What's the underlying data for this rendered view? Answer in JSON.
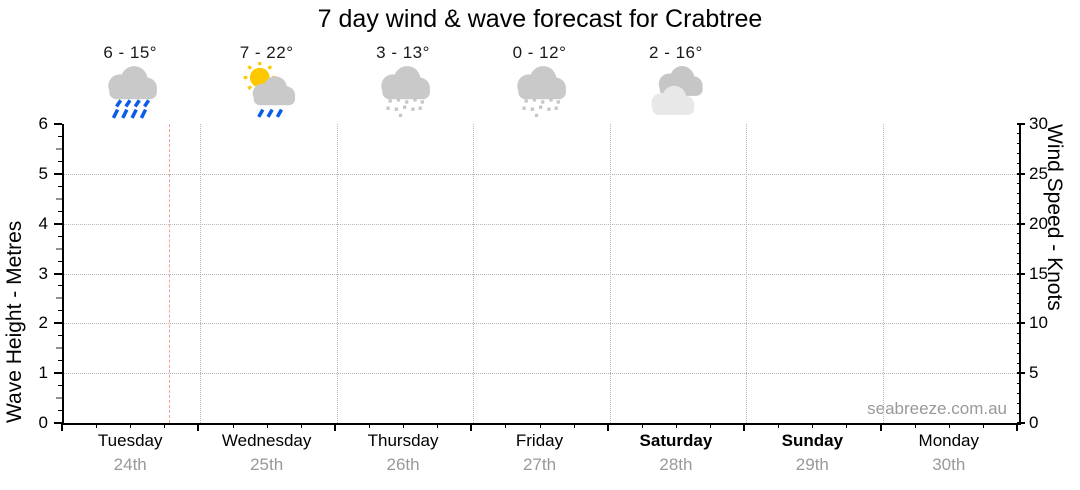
{
  "chart_data": {
    "type": "line",
    "title": "7 day wind & wave forecast for Crabtree",
    "watermark": "seabreeze.com.au",
    "left_axis": {
      "label": "Wave Height - Metres",
      "min": 0,
      "max": 6,
      "major_ticks": [
        0,
        1,
        2,
        3,
        4,
        5,
        6
      ],
      "minor_step": 0.25
    },
    "right_axis": {
      "label": "Wind Speed - Knots",
      "min": 0,
      "max": 30,
      "major_ticks": [
        0,
        5,
        10,
        15,
        20,
        25,
        30
      ],
      "minor_step": 1
    },
    "x_axis": {
      "minor_divisions_per_day": 4
    },
    "grid": {
      "horizontal_at_metres": [
        1,
        2,
        3,
        4,
        5
      ],
      "vertical_at_day_boundaries": true,
      "style": "dotted"
    },
    "now_marker": {
      "day_index": 0,
      "day_fraction": 0.77
    },
    "days": [
      {
        "name": "Tuesday",
        "date": "24th",
        "temp": "6 - 15°",
        "icon": "rain",
        "weekend": false
      },
      {
        "name": "Wednesday",
        "date": "25th",
        "temp": "7 - 22°",
        "icon": "sun-shower",
        "weekend": false
      },
      {
        "name": "Thursday",
        "date": "26th",
        "temp": "3 - 13°",
        "icon": "drizzle",
        "weekend": false
      },
      {
        "name": "Friday",
        "date": "27th",
        "temp": "0 - 12°",
        "icon": "drizzle",
        "weekend": false
      },
      {
        "name": "Saturday",
        "date": "28th",
        "temp": "2 - 16°",
        "icon": "cloudy",
        "weekend": true
      },
      {
        "name": "Sunday",
        "date": "29th",
        "temp": "",
        "icon": "",
        "weekend": true
      },
      {
        "name": "Monday",
        "date": "30th",
        "temp": "",
        "icon": "",
        "weekend": false
      }
    ],
    "series": []
  },
  "colors": {
    "axis": "#000000",
    "grid": "#b5b5b5",
    "now_line": "#ff9b9b",
    "cloud": "#c9c9c9",
    "cloud_light": "#e8e8e8",
    "cloud_dark": "#c6c6c6",
    "rain": "#0b5ce8",
    "sun": "#fdc800",
    "drizzle_dot": "#c6c6c6",
    "date_text": "#999999"
  }
}
